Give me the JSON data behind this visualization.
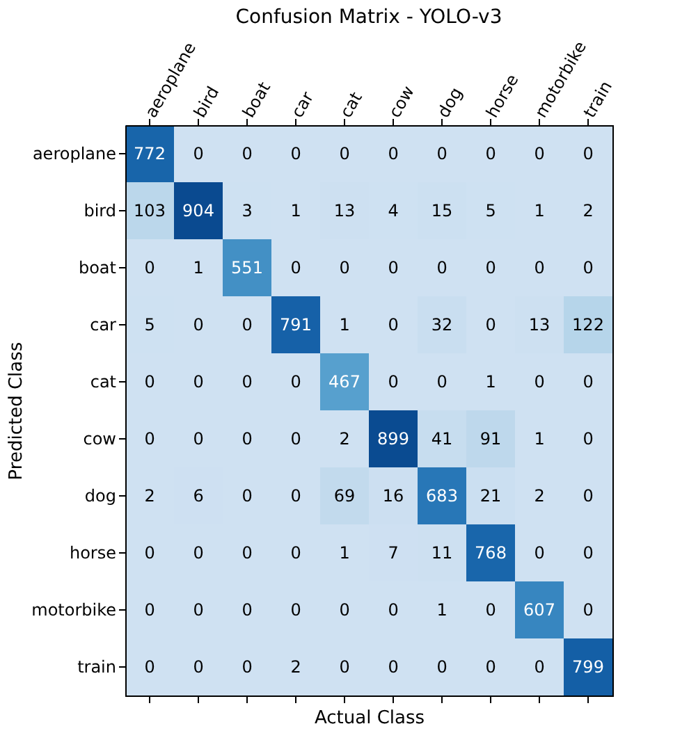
{
  "chart_data": {
    "type": "heatmap",
    "title": "Confusion Matrix - YOLO-v3",
    "xlabel": "Actual Class",
    "ylabel": "Predicted Class",
    "categories": [
      "aeroplane",
      "bird",
      "boat",
      "car",
      "cat",
      "cow",
      "dog",
      "horse",
      "motorbike",
      "train"
    ],
    "y_categories": [
      "aeroplane",
      "bird",
      "boat",
      "car",
      "cat",
      "cow",
      "dog",
      "horse",
      "motorbike",
      "train"
    ],
    "cells": [
      [
        772,
        0,
        0,
        0,
        0,
        0,
        0,
        0,
        0,
        0
      ],
      [
        103,
        904,
        3,
        1,
        13,
        4,
        15,
        5,
        1,
        2
      ],
      [
        0,
        1,
        551,
        0,
        0,
        0,
        0,
        0,
        0,
        0
      ],
      [
        5,
        0,
        0,
        791,
        1,
        0,
        32,
        0,
        13,
        122
      ],
      [
        0,
        0,
        0,
        0,
        467,
        0,
        0,
        1,
        0,
        0
      ],
      [
        0,
        0,
        0,
        0,
        2,
        899,
        41,
        91,
        1,
        0
      ],
      [
        2,
        6,
        0,
        0,
        69,
        16,
        683,
        21,
        2,
        0
      ],
      [
        0,
        0,
        0,
        0,
        1,
        7,
        11,
        768,
        0,
        0
      ],
      [
        0,
        0,
        0,
        0,
        0,
        0,
        1,
        0,
        607,
        0
      ],
      [
        0,
        0,
        0,
        2,
        0,
        0,
        0,
        0,
        0,
        799
      ]
    ],
    "data_labels": true
  }
}
